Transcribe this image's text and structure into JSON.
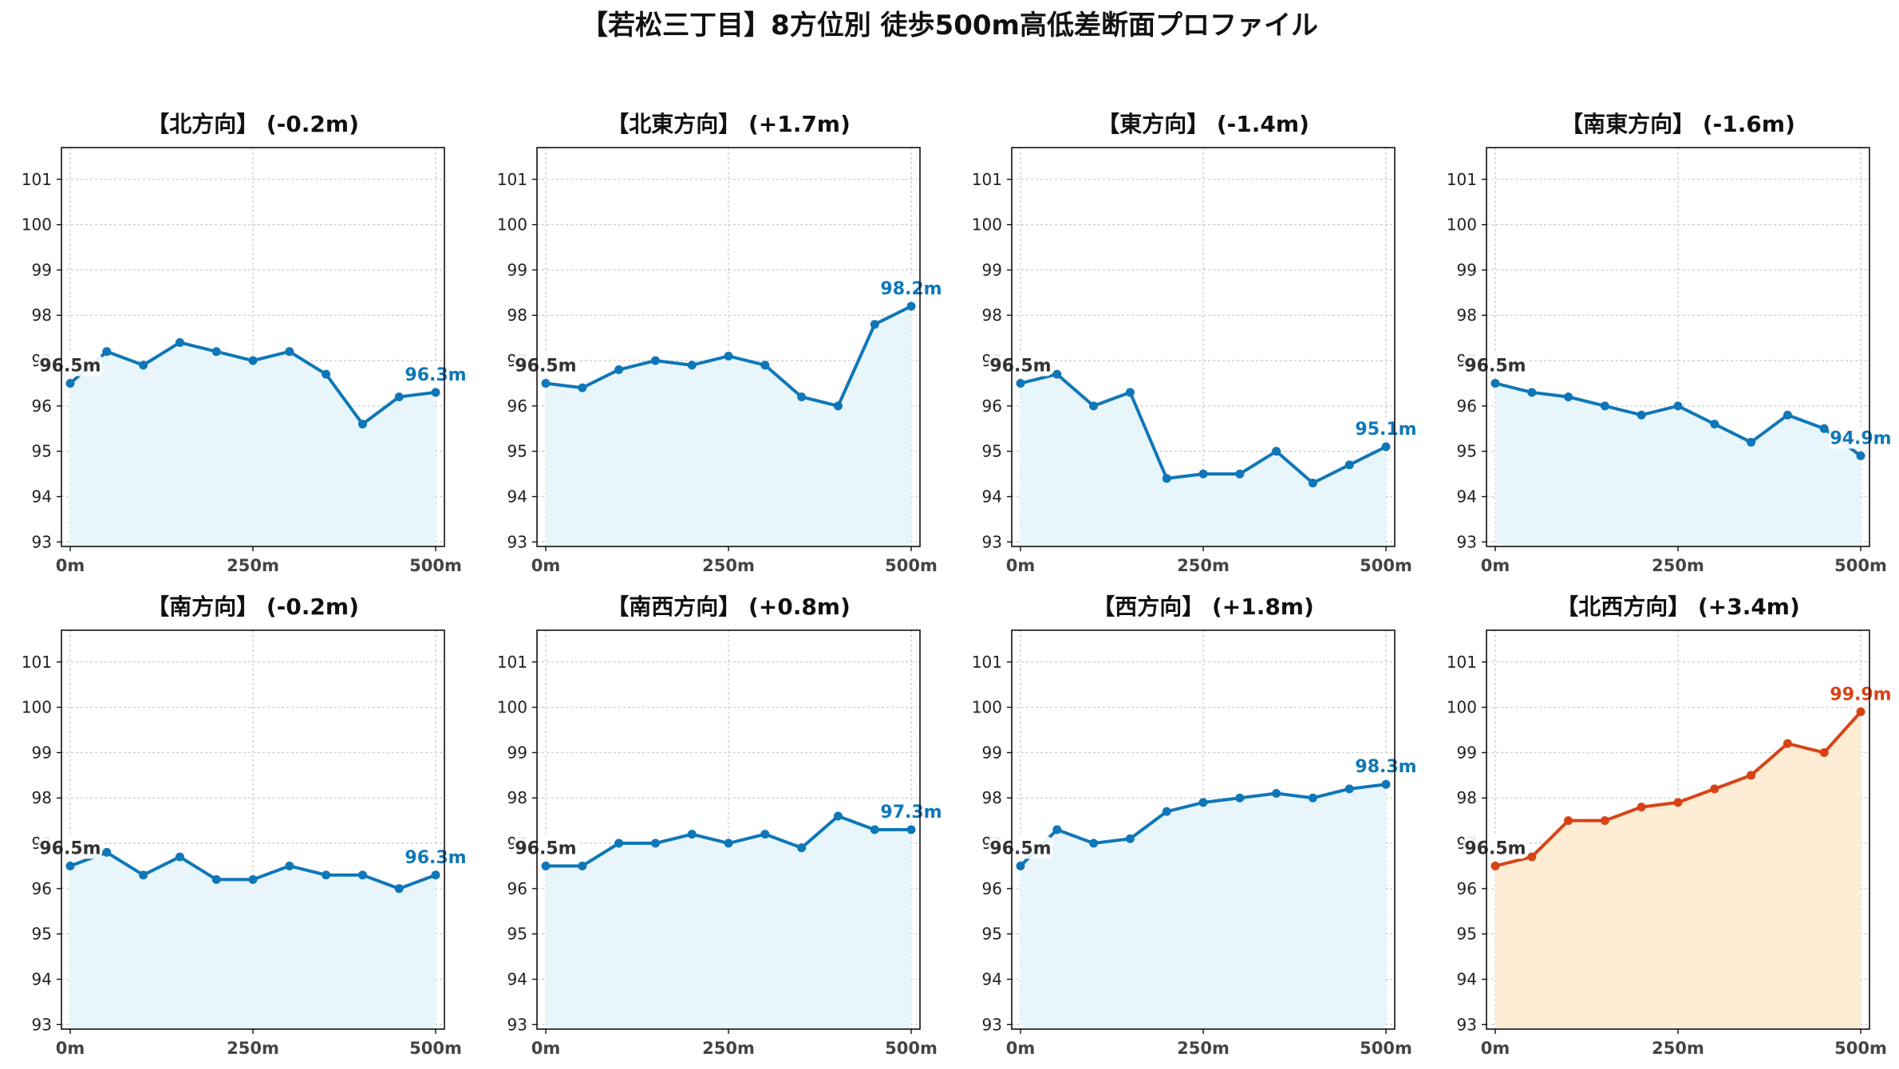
{
  "suptitle": "【若松三丁目】8方位別 徒歩500m高低差断面プロファイル",
  "chart_data": [
    {
      "type": "line",
      "title": "【北方向】 (-0.2m)",
      "xlabel": "",
      "ylabel": "",
      "x": [
        0,
        50,
        100,
        150,
        200,
        250,
        300,
        350,
        400,
        450,
        500
      ],
      "values": [
        96.5,
        97.2,
        96.9,
        97.4,
        97.2,
        97.0,
        97.2,
        96.7,
        95.6,
        96.2,
        96.3
      ],
      "color": "#0f77b8",
      "fill": "#e8f6fc",
      "start_label": "96.5m",
      "end_label": "96.3m",
      "xticks": [
        "0m",
        "250m",
        "500m"
      ],
      "yticks": [
        "93",
        "94",
        "95",
        "96",
        "97",
        "98",
        "99",
        "100",
        "101"
      ],
      "ylim": [
        92.9,
        101.7
      ],
      "xlim": [
        -12,
        512
      ],
      "grid": true
    },
    {
      "type": "line",
      "title": "【北東方向】 (+1.7m)",
      "xlabel": "",
      "ylabel": "",
      "x": [
        0,
        50,
        100,
        150,
        200,
        250,
        300,
        350,
        400,
        450,
        500
      ],
      "values": [
        96.5,
        96.4,
        96.8,
        97.0,
        96.9,
        97.1,
        96.9,
        96.2,
        96.0,
        97.8,
        98.2
      ],
      "color": "#0f77b8",
      "fill": "#e8f6fc",
      "start_label": "96.5m",
      "end_label": "98.2m",
      "xticks": [
        "0m",
        "250m",
        "500m"
      ],
      "yticks": [
        "93",
        "94",
        "95",
        "96",
        "97",
        "98",
        "99",
        "100",
        "101"
      ],
      "ylim": [
        92.9,
        101.7
      ],
      "xlim": [
        -12,
        512
      ],
      "grid": true
    },
    {
      "type": "line",
      "title": "【東方向】 (-1.4m)",
      "xlabel": "",
      "ylabel": "",
      "x": [
        0,
        50,
        100,
        150,
        200,
        250,
        300,
        350,
        400,
        450,
        500
      ],
      "values": [
        96.5,
        96.7,
        96.0,
        96.3,
        94.4,
        94.5,
        94.5,
        95.0,
        94.3,
        94.7,
        95.1
      ],
      "color": "#0f77b8",
      "fill": "#e8f6fc",
      "start_label": "96.5m",
      "end_label": "95.1m",
      "xticks": [
        "0m",
        "250m",
        "500m"
      ],
      "yticks": [
        "93",
        "94",
        "95",
        "96",
        "97",
        "98",
        "99",
        "100",
        "101"
      ],
      "ylim": [
        92.9,
        101.7
      ],
      "xlim": [
        -12,
        512
      ],
      "grid": true
    },
    {
      "type": "line",
      "title": "【南東方向】 (-1.6m)",
      "xlabel": "",
      "ylabel": "",
      "x": [
        0,
        50,
        100,
        150,
        200,
        250,
        300,
        350,
        400,
        450,
        500
      ],
      "values": [
        96.5,
        96.3,
        96.2,
        96.0,
        95.8,
        96.0,
        95.6,
        95.2,
        95.8,
        95.5,
        94.9
      ],
      "color": "#0f77b8",
      "fill": "#e8f6fc",
      "start_label": "96.5m",
      "end_label": "94.9m",
      "xticks": [
        "0m",
        "250m",
        "500m"
      ],
      "yticks": [
        "93",
        "94",
        "95",
        "96",
        "97",
        "98",
        "99",
        "100",
        "101"
      ],
      "ylim": [
        92.9,
        101.7
      ],
      "xlim": [
        -12,
        512
      ],
      "grid": true
    },
    {
      "type": "line",
      "title": "【南方向】 (-0.2m)",
      "xlabel": "",
      "ylabel": "",
      "x": [
        0,
        50,
        100,
        150,
        200,
        250,
        300,
        350,
        400,
        450,
        500
      ],
      "values": [
        96.5,
        96.8,
        96.3,
        96.7,
        96.2,
        96.2,
        96.5,
        96.3,
        96.3,
        96.0,
        96.3
      ],
      "color": "#0f77b8",
      "fill": "#e8f6fc",
      "start_label": "96.5m",
      "end_label": "96.3m",
      "xticks": [
        "0m",
        "250m",
        "500m"
      ],
      "yticks": [
        "93",
        "94",
        "95",
        "96",
        "97",
        "98",
        "99",
        "100",
        "101"
      ],
      "ylim": [
        92.9,
        101.7
      ],
      "xlim": [
        -12,
        512
      ],
      "grid": true
    },
    {
      "type": "line",
      "title": "【南西方向】 (+0.8m)",
      "xlabel": "",
      "ylabel": "",
      "x": [
        0,
        50,
        100,
        150,
        200,
        250,
        300,
        350,
        400,
        450,
        500
      ],
      "values": [
        96.5,
        96.5,
        97.0,
        97.0,
        97.2,
        97.0,
        97.2,
        96.9,
        97.6,
        97.3,
        97.3
      ],
      "color": "#0f77b8",
      "fill": "#e8f6fc",
      "start_label": "96.5m",
      "end_label": "97.3m",
      "xticks": [
        "0m",
        "250m",
        "500m"
      ],
      "yticks": [
        "93",
        "94",
        "95",
        "96",
        "97",
        "98",
        "99",
        "100",
        "101"
      ],
      "ylim": [
        92.9,
        101.7
      ],
      "xlim": [
        -12,
        512
      ],
      "grid": true
    },
    {
      "type": "line",
      "title": "【西方向】 (+1.8m)",
      "xlabel": "",
      "ylabel": "",
      "x": [
        0,
        50,
        100,
        150,
        200,
        250,
        300,
        350,
        400,
        450,
        500
      ],
      "values": [
        96.5,
        97.3,
        97.0,
        97.1,
        97.7,
        97.9,
        98.0,
        98.1,
        98.0,
        98.2,
        98.3
      ],
      "color": "#0f77b8",
      "fill": "#e8f6fc",
      "start_label": "96.5m",
      "end_label": "98.3m",
      "xticks": [
        "0m",
        "250m",
        "500m"
      ],
      "yticks": [
        "93",
        "94",
        "95",
        "96",
        "97",
        "98",
        "99",
        "100",
        "101"
      ],
      "ylim": [
        92.9,
        101.7
      ],
      "xlim": [
        -12,
        512
      ],
      "grid": true
    },
    {
      "type": "line",
      "title": "【北西方向】 (+3.4m)",
      "xlabel": "",
      "ylabel": "",
      "x": [
        0,
        50,
        100,
        150,
        200,
        250,
        300,
        350,
        400,
        450,
        500
      ],
      "values": [
        96.5,
        96.7,
        97.5,
        97.5,
        97.8,
        97.9,
        98.2,
        98.5,
        99.2,
        99.0,
        99.9
      ],
      "color": "#d84315",
      "fill": "#feecd4",
      "start_label": "96.5m",
      "end_label": "99.9m",
      "xticks": [
        "0m",
        "250m",
        "500m"
      ],
      "yticks": [
        "93",
        "94",
        "95",
        "96",
        "97",
        "98",
        "99",
        "100",
        "101"
      ],
      "ylim": [
        92.9,
        101.7
      ],
      "xlim": [
        -12,
        512
      ],
      "grid": true
    }
  ]
}
